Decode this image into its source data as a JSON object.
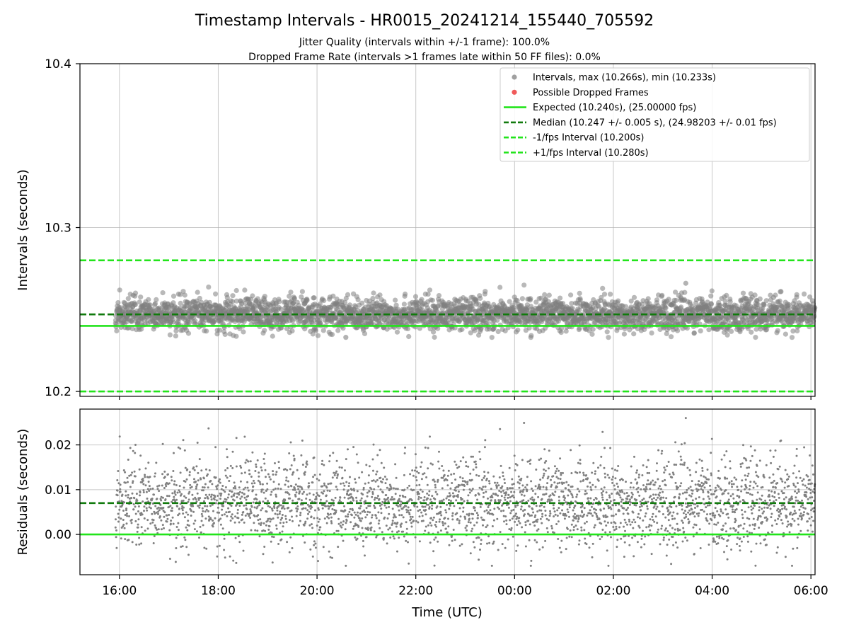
{
  "chart_data": [
    {
      "type": "scatter",
      "title": "Timestamp Intervals - HR0015_20241214_155440_705592",
      "subtitle_lines": [
        "Jitter Quality (intervals within +/-1 frame): 100.0%",
        "Dropped Frame Rate (intervals >1 frames late within 50 FF files): 0.0%"
      ],
      "ylabel": "Intervals (seconds)",
      "ylim": [
        10.197,
        10.4
      ],
      "xlim": [
        "2024-12-14 15:12",
        "2024-12-15 06:05"
      ],
      "yticks": [
        10.2,
        10.3,
        10.4
      ],
      "ytick_labels": [
        "10.2",
        "10.3",
        "10.4"
      ],
      "grid": true,
      "legend_position": "top-right",
      "series": [
        {
          "name": "Intervals, max (10.266s), min (10.233s)",
          "kind": "scatter",
          "color": "#808080",
          "x_range": [
            "2024-12-14 15:55",
            "2024-12-15 06:05"
          ],
          "center": 10.247,
          "spread": 0.005,
          "max": 10.266,
          "min": 10.233
        },
        {
          "name": "Possible Dropped Frames",
          "kind": "scatter",
          "color": "#f05a5a",
          "count": 0
        },
        {
          "name": "Expected (10.240s), (25.00000 fps)",
          "kind": "hline",
          "y": 10.24,
          "color": "#22e41b",
          "style": "solid"
        },
        {
          "name": "Median (10.247 +/- 0.005 s), (24.98203 +/- 0.01 fps)",
          "kind": "hline",
          "y": 10.247,
          "color": "#117a0d",
          "style": "dashed"
        },
        {
          "name": "-1/fps Interval (10.200s)",
          "kind": "hline",
          "y": 10.2,
          "color": "#22e41b",
          "style": "dashed"
        },
        {
          "name": "+1/fps Interval (10.280s)",
          "kind": "hline",
          "y": 10.28,
          "color": "#22e41b",
          "style": "dashed"
        }
      ]
    },
    {
      "type": "scatter",
      "xlabel": "Time (UTC)",
      "ylabel": "Residuals (seconds)",
      "ylim": [
        -0.009,
        0.028
      ],
      "xlim": [
        "2024-12-14 15:12",
        "2024-12-15 06:05"
      ],
      "yticks": [
        0.0,
        0.01,
        0.02
      ],
      "ytick_labels": [
        "0.00",
        "0.01",
        "0.02"
      ],
      "xticks": [
        "2024-12-14 16:00",
        "2024-12-14 18:00",
        "2024-12-14 20:00",
        "2024-12-14 22:00",
        "2024-12-15 00:00",
        "2024-12-15 02:00",
        "2024-12-15 04:00",
        "2024-12-15 06:00"
      ],
      "xtick_labels": [
        "16:00",
        "18:00",
        "20:00",
        "22:00",
        "00:00",
        "02:00",
        "04:00",
        "06:00"
      ],
      "grid": true,
      "series": [
        {
          "kind": "scatter",
          "color": "#808080",
          "x_range": [
            "2024-12-14 15:55",
            "2024-12-15 06:05"
          ],
          "center": 0.007,
          "spread": 0.005,
          "max": 0.026,
          "min": -0.007
        },
        {
          "kind": "hline",
          "y": 0.0,
          "color": "#22e41b",
          "style": "solid"
        },
        {
          "kind": "hline",
          "y": 0.007,
          "color": "#117a0d",
          "style": "dashed"
        }
      ]
    }
  ]
}
